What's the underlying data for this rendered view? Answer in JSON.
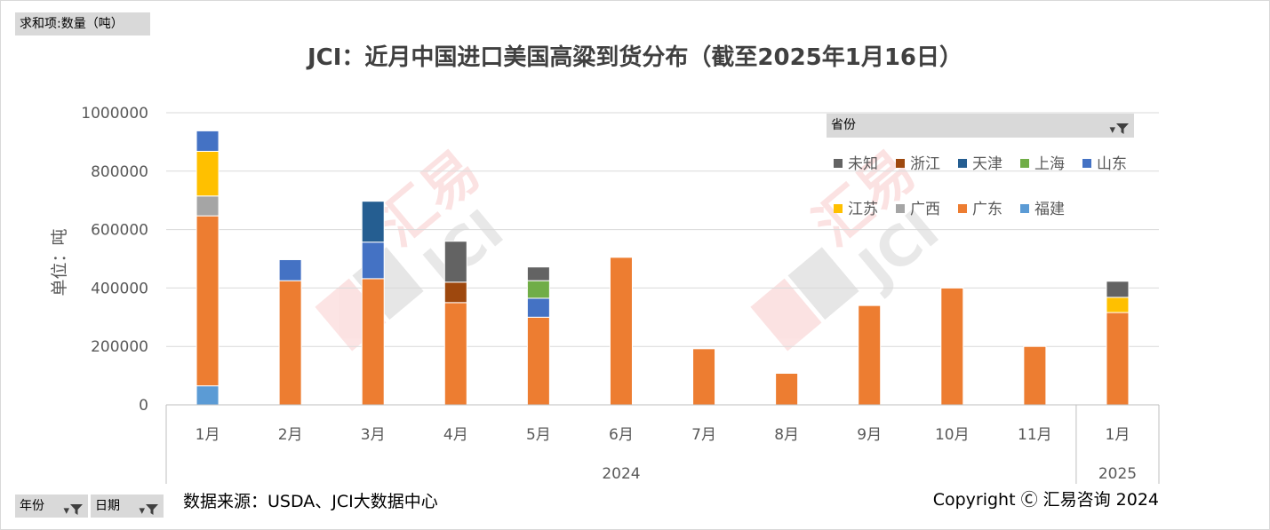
{
  "header_button": {
    "label": "求和项:数量（吨）"
  },
  "footer_buttons": [
    {
      "label": "年份",
      "icon": "filter-icon"
    },
    {
      "label": "日期",
      "icon": "filter-icon"
    }
  ],
  "legend_header": {
    "label": "省份",
    "icon": "filter-icon"
  },
  "source_text": "数据来源：USDA、JCI大数据中心",
  "copyright_text": "Copyright Ⓒ 汇易咨询 2024",
  "watermark": "汇易 JCI",
  "colors": {
    "未知": "#636363",
    "浙江": "#9e480e",
    "天津": "#255e91",
    "上海": "#70ad47",
    "山东": "#4472c4",
    "江苏": "#ffc000",
    "广西": "#a5a5a5",
    "广东": "#ed7d31",
    "福建": "#5b9bd5"
  },
  "chart_data": {
    "type": "bar",
    "stacked": true,
    "title": "JCI：近月中国进口美国高粱到货分布（截至2025年1月16日）",
    "ylabel": "单位：吨",
    "ylim": [
      0,
      1000000
    ],
    "yticks": [
      0,
      200000,
      400000,
      600000,
      800000,
      1000000
    ],
    "grid": true,
    "legend_position": "top-right",
    "categories": [
      "1月",
      "2月",
      "3月",
      "4月",
      "5月",
      "6月",
      "7月",
      "8月",
      "9月",
      "10月",
      "11月",
      "1月"
    ],
    "year_groups": [
      {
        "label": "2024",
        "count": 11
      },
      {
        "label": "2025",
        "count": 1
      }
    ],
    "series": [
      {
        "name": "福建",
        "values": [
          65000,
          0,
          0,
          0,
          0,
          0,
          0,
          0,
          0,
          0,
          0,
          0
        ]
      },
      {
        "name": "广东",
        "values": [
          582000,
          425000,
          432000,
          350000,
          300000,
          505000,
          192000,
          108000,
          340000,
          400000,
          200000,
          316000
        ]
      },
      {
        "name": "广西",
        "values": [
          68000,
          0,
          0,
          0,
          0,
          0,
          0,
          0,
          0,
          0,
          0,
          0
        ]
      },
      {
        "name": "江苏",
        "values": [
          153000,
          0,
          0,
          0,
          0,
          0,
          0,
          0,
          0,
          0,
          0,
          52000
        ]
      },
      {
        "name": "山东",
        "values": [
          70000,
          72000,
          125000,
          0,
          65000,
          0,
          0,
          0,
          0,
          0,
          0,
          0
        ]
      },
      {
        "name": "上海",
        "values": [
          0,
          0,
          0,
          0,
          60000,
          0,
          0,
          0,
          0,
          0,
          0,
          0
        ]
      },
      {
        "name": "天津",
        "values": [
          0,
          0,
          140000,
          0,
          0,
          0,
          0,
          0,
          0,
          0,
          0,
          0
        ]
      },
      {
        "name": "浙江",
        "values": [
          0,
          0,
          0,
          70000,
          0,
          0,
          0,
          0,
          0,
          0,
          0,
          0
        ]
      },
      {
        "name": "未知",
        "values": [
          0,
          0,
          0,
          140000,
          47000,
          0,
          0,
          0,
          0,
          0,
          0,
          55000
        ]
      }
    ],
    "legend_order": [
      "未知",
      "浙江",
      "天津",
      "上海",
      "山东",
      "江苏",
      "广西",
      "广东",
      "福建"
    ]
  }
}
